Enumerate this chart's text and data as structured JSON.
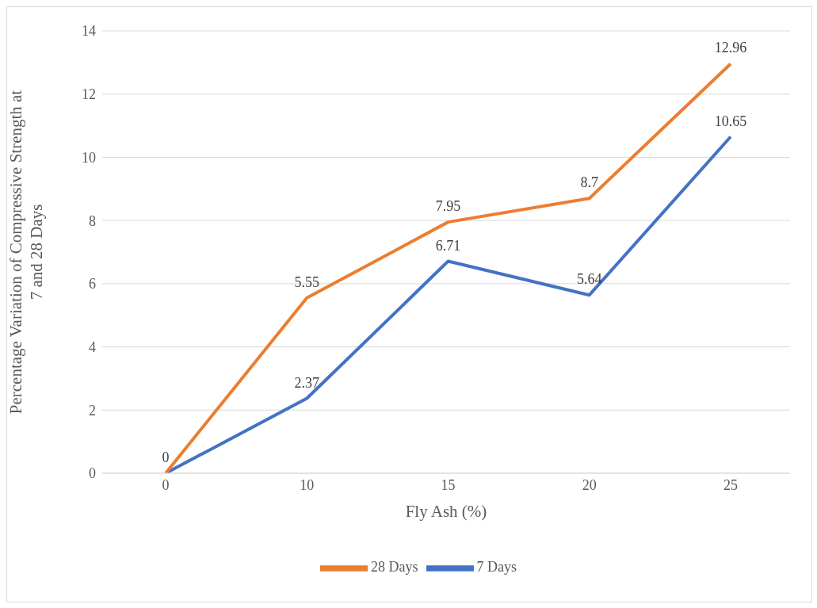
{
  "chart_data": {
    "type": "line",
    "xlabel": "Fly Ash (%)",
    "ylabel": "Percentage Variation of Compressive Strength at 7 and 28 Days",
    "categories": [
      "0",
      "10",
      "15",
      "20",
      "25"
    ],
    "series": [
      {
        "name": "7 Days",
        "color": "#4472c4",
        "values": [
          0,
          2.37,
          6.71,
          5.64,
          10.65
        ],
        "value_labels": [
          null,
          "2.37",
          "6.71",
          "5.64",
          "10.65"
        ]
      },
      {
        "name": "28 Days",
        "color": "#ed7d31",
        "values": [
          0,
          5.55,
          7.95,
          8.7,
          12.96
        ],
        "value_labels": [
          "0",
          "5.55",
          "7.95",
          "8.7",
          "12.96"
        ]
      }
    ],
    "ylim": [
      0,
      14
    ],
    "yticks": [
      0,
      2,
      4,
      6,
      8,
      10,
      12,
      14
    ],
    "grid": "y",
    "legend": "bottom",
    "marker": "none",
    "line_style": "solid"
  }
}
